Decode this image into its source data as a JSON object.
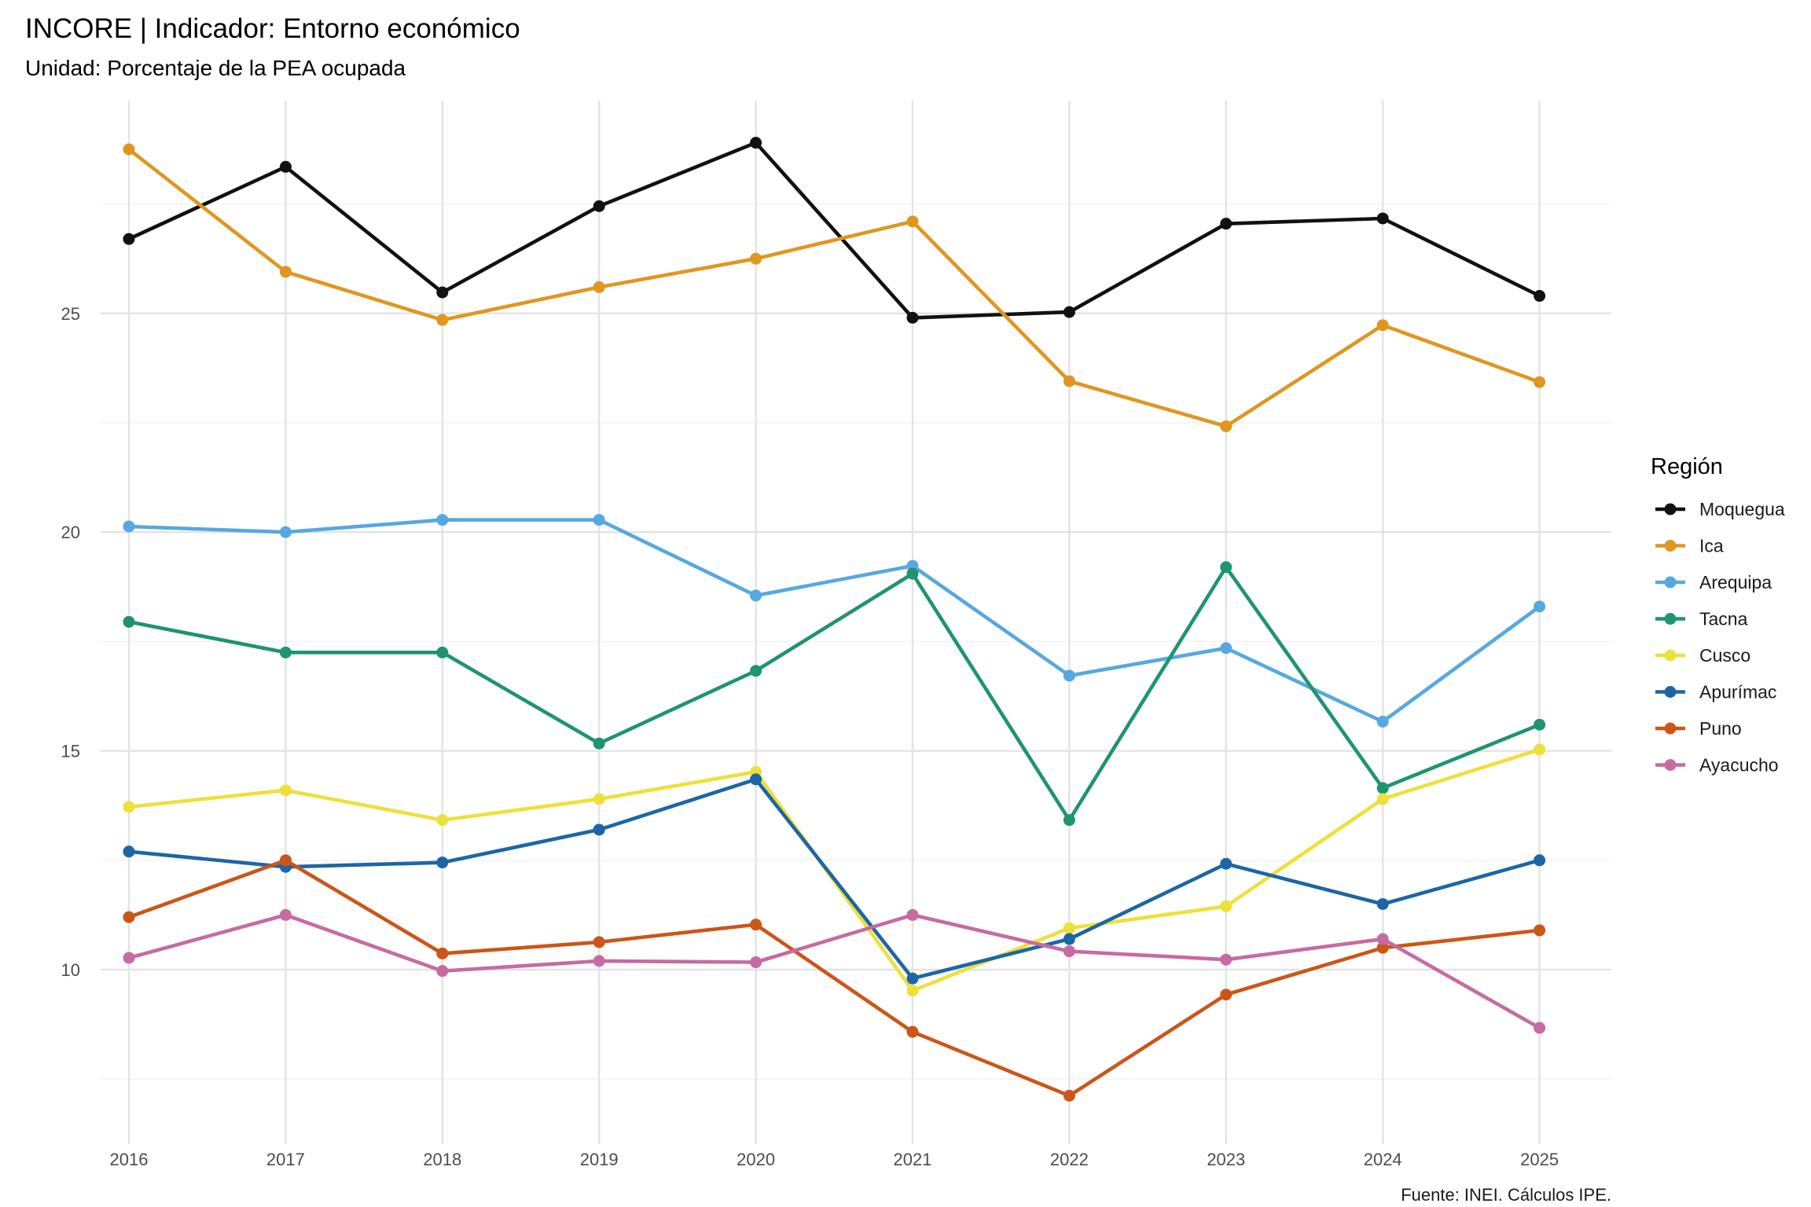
{
  "chart_data": {
    "type": "line",
    "title": "INCORE | Indicador: Entorno económico",
    "subtitle": "Unidad: Porcentaje de la PEA ocupada",
    "caption": "Fuente: INEI. Cálculos IPE.",
    "xlabel": "",
    "ylabel": "",
    "x": [
      2016,
      2017,
      2018,
      2019,
      2020,
      2021,
      2022,
      2023,
      2024,
      2025
    ],
    "ylim": [
      6.8,
      29.3
    ],
    "yticks": [
      10,
      15,
      20,
      25
    ],
    "grid": true,
    "legend": {
      "title": "Región",
      "position": "right"
    },
    "series": [
      {
        "name": "Moquegua",
        "color": "#111111",
        "values": [
          26.7,
          28.35,
          25.48,
          27.45,
          28.9,
          24.9,
          25.03,
          27.05,
          27.17,
          25.4
        ]
      },
      {
        "name": "Ica",
        "color": "#E0961F",
        "values": [
          28.75,
          25.95,
          24.85,
          25.6,
          26.25,
          27.1,
          23.45,
          22.42,
          24.73,
          23.43
        ]
      },
      {
        "name": "Arequipa",
        "color": "#56A8E0",
        "values": [
          20.13,
          20.0,
          20.28,
          20.28,
          18.55,
          19.23,
          16.72,
          17.35,
          15.67,
          18.3
        ]
      },
      {
        "name": "Tacna",
        "color": "#1E9470",
        "values": [
          17.95,
          17.25,
          17.25,
          15.17,
          16.83,
          19.05,
          13.42,
          19.2,
          14.15,
          15.6
        ]
      },
      {
        "name": "Cusco",
        "color": "#EDE03A",
        "values": [
          13.72,
          14.1,
          13.42,
          13.9,
          14.52,
          9.52,
          10.95,
          11.45,
          13.9,
          15.03
        ]
      },
      {
        "name": "Apurímac",
        "color": "#1C66A6",
        "values": [
          12.7,
          12.35,
          12.45,
          13.2,
          14.35,
          9.8,
          10.7,
          12.42,
          11.5,
          12.5
        ]
      },
      {
        "name": "Puno",
        "color": "#CC5518",
        "values": [
          11.2,
          12.5,
          10.37,
          10.63,
          11.03,
          8.58,
          7.12,
          9.43,
          10.5,
          10.9
        ]
      },
      {
        "name": "Ayacucho",
        "color": "#C76AA2",
        "values": [
          10.27,
          11.25,
          9.97,
          10.2,
          10.17,
          11.25,
          10.42,
          10.23,
          10.7,
          8.67
        ]
      }
    ]
  }
}
